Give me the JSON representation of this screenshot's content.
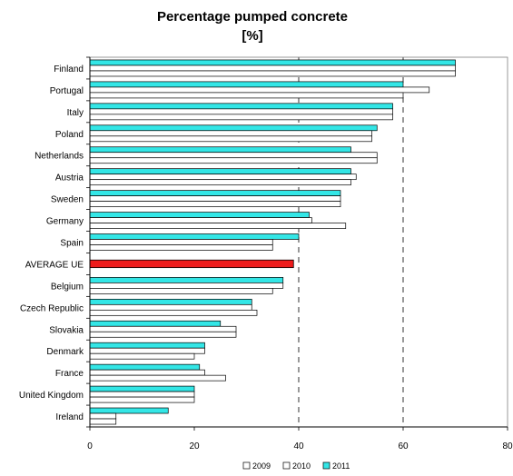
{
  "chart_data": {
    "type": "bar",
    "orientation": "horizontal",
    "title": "Percentage pumped concrete",
    "subtitle": "[%]",
    "xlabel": "",
    "ylabel": "",
    "xlim": [
      0,
      80
    ],
    "x_ticks": [
      0,
      20,
      40,
      60,
      80
    ],
    "grid": "dashed vertical lines at 40 and 60",
    "legend_position": "bottom",
    "categories": [
      "Finland",
      "Portugal",
      "Italy",
      "Poland",
      "Netherlands",
      "Austria",
      "Sweden",
      "Germany",
      "Spain",
      "AVERAGE UE",
      "Belgium",
      "Czech Republic",
      "Slovakia",
      "Denmark",
      "France",
      "United Kingdom",
      "Ireland"
    ],
    "series": [
      {
        "name": "2009",
        "color": "#ffffff",
        "values": [
          70,
          60,
          58,
          54,
          55,
          50,
          48,
          49,
          35,
          null,
          35,
          32,
          28,
          20,
          26,
          20,
          5
        ]
      },
      {
        "name": "2010",
        "color": "#ffffff",
        "values": [
          70,
          65,
          58,
          54,
          55,
          51,
          48,
          42.5,
          35,
          null,
          37,
          31,
          28,
          22,
          22,
          20,
          5
        ]
      },
      {
        "name": "2011",
        "color": "#33e6e6",
        "values": [
          70,
          60,
          58,
          55,
          50,
          50,
          48,
          42,
          40,
          null,
          37,
          31,
          25,
          22,
          21,
          20,
          15
        ]
      }
    ],
    "average": {
      "category": "AVERAGE UE",
      "value": 39,
      "color": "#ee1c1c"
    }
  }
}
